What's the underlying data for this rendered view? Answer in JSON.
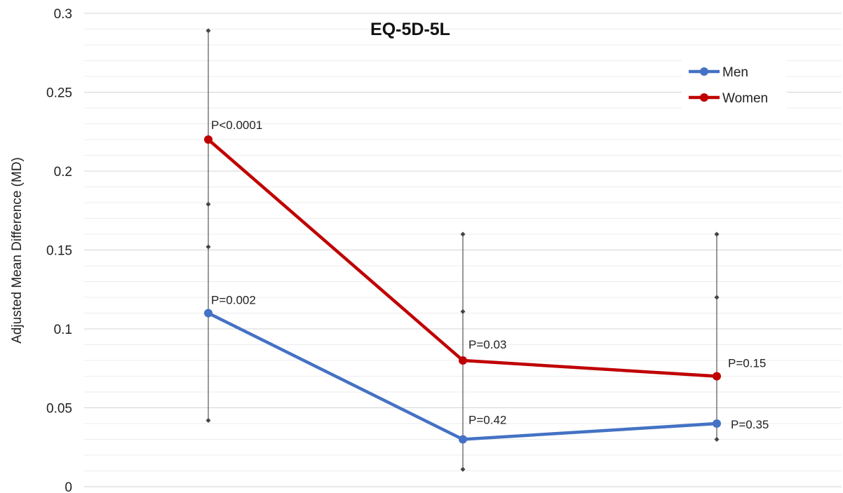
{
  "chart_data": {
    "type": "line",
    "title": "EQ-5D-5L",
    "ylabel": "Adjusted Mean Difference (MD)",
    "xlabel": "",
    "ylim": [
      0,
      0.3
    ],
    "yticks": [
      "0",
      "0.05",
      "0.1",
      "0.15",
      "0.2",
      "0.25",
      "0.3"
    ],
    "grid": true,
    "legend_position": "top-right",
    "series": [
      {
        "name": "Men",
        "color": "#4472c4",
        "values": [
          0.11,
          0.03,
          0.04
        ],
        "labels": [
          "P=0.002",
          "P=0.42",
          "P=0.35"
        ]
      },
      {
        "name": "Women",
        "color": "#c00000",
        "values": [
          0.22,
          0.08,
          0.07
        ],
        "labels": [
          "P<0.0001",
          "P=0.03",
          "P=0.15"
        ]
      }
    ],
    "error_bars": [
      {
        "low": 0.042,
        "high": 0.289,
        "marks": [
          0.152,
          0.179
        ]
      },
      {
        "low": 0.011,
        "high": 0.16,
        "marks": [
          0.111
        ]
      },
      {
        "low": 0.03,
        "high": 0.16,
        "marks": [
          0.12
        ]
      }
    ]
  }
}
